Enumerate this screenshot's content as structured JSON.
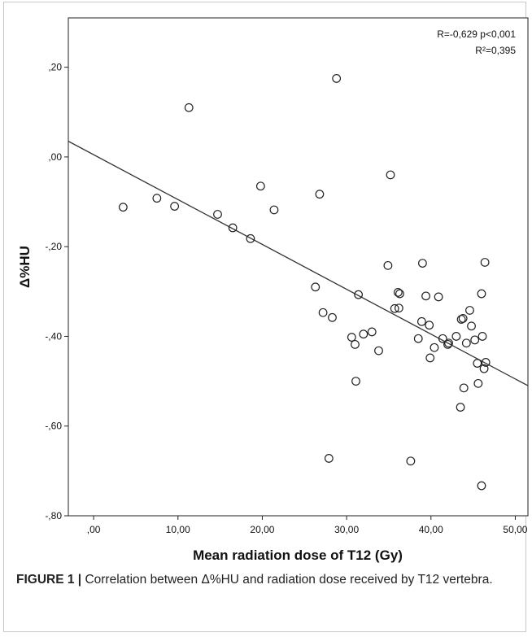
{
  "chart_data": {
    "type": "scatter",
    "xlabel": "Mean radiation dose of T12 (Gy)",
    "ylabel": "Δ%HU",
    "xlim": [
      -3,
      51.5
    ],
    "ylim": [
      -0.8,
      0.31
    ],
    "x_ticks": [
      0,
      10,
      20,
      30,
      40,
      50
    ],
    "x_tick_labels": [
      ",00",
      "10,00",
      "20,00",
      "30,00",
      "40,00",
      "50,00"
    ],
    "y_ticks": [
      0.2,
      0,
      -0.2,
      -0.4,
      -0.6,
      -0.8
    ],
    "y_tick_labels": [
      ",20",
      ",00",
      "-,20",
      "-,40",
      "-,60",
      "-,80"
    ],
    "grid": false,
    "annotations": [
      "R=-0,629  p<0,001",
      "R²=0,395"
    ],
    "fit_line": {
      "x": [
        -3,
        51.5
      ],
      "y": [
        0.035,
        -0.51
      ]
    },
    "points": [
      {
        "x": 3.5,
        "y": -0.112
      },
      {
        "x": 7.5,
        "y": -0.092
      },
      {
        "x": 9.6,
        "y": -0.11
      },
      {
        "x": 11.3,
        "y": 0.11
      },
      {
        "x": 14.7,
        "y": -0.128
      },
      {
        "x": 16.5,
        "y": -0.158
      },
      {
        "x": 18.6,
        "y": -0.182
      },
      {
        "x": 19.8,
        "y": -0.065
      },
      {
        "x": 21.4,
        "y": -0.118
      },
      {
        "x": 26.3,
        "y": -0.29
      },
      {
        "x": 26.8,
        "y": -0.083
      },
      {
        "x": 27.2,
        "y": -0.347
      },
      {
        "x": 27.9,
        "y": -0.672
      },
      {
        "x": 28.3,
        "y": -0.358
      },
      {
        "x": 28.8,
        "y": 0.175
      },
      {
        "x": 30.6,
        "y": -0.402
      },
      {
        "x": 31.0,
        "y": -0.418
      },
      {
        "x": 31.1,
        "y": -0.5
      },
      {
        "x": 31.4,
        "y": -0.307
      },
      {
        "x": 32.0,
        "y": -0.395
      },
      {
        "x": 33.0,
        "y": -0.39
      },
      {
        "x": 33.8,
        "y": -0.432
      },
      {
        "x": 34.9,
        "y": -0.242
      },
      {
        "x": 35.2,
        "y": -0.04
      },
      {
        "x": 35.7,
        "y": -0.338
      },
      {
        "x": 36.1,
        "y": -0.302
      },
      {
        "x": 36.2,
        "y": -0.337
      },
      {
        "x": 36.3,
        "y": -0.305
      },
      {
        "x": 37.6,
        "y": -0.678
      },
      {
        "x": 38.5,
        "y": -0.405
      },
      {
        "x": 38.9,
        "y": -0.367
      },
      {
        "x": 39.0,
        "y": -0.237
      },
      {
        "x": 39.4,
        "y": -0.31
      },
      {
        "x": 39.8,
        "y": -0.375
      },
      {
        "x": 39.9,
        "y": -0.448
      },
      {
        "x": 40.4,
        "y": -0.425
      },
      {
        "x": 40.9,
        "y": -0.312
      },
      {
        "x": 41.4,
        "y": -0.405
      },
      {
        "x": 42.0,
        "y": -0.418
      },
      {
        "x": 42.1,
        "y": -0.415
      },
      {
        "x": 43.0,
        "y": -0.4
      },
      {
        "x": 43.5,
        "y": -0.558
      },
      {
        "x": 43.6,
        "y": -0.362
      },
      {
        "x": 43.8,
        "y": -0.36
      },
      {
        "x": 43.9,
        "y": -0.515
      },
      {
        "x": 44.2,
        "y": -0.415
      },
      {
        "x": 44.6,
        "y": -0.342
      },
      {
        "x": 44.8,
        "y": -0.377
      },
      {
        "x": 45.2,
        "y": -0.408
      },
      {
        "x": 45.5,
        "y": -0.46
      },
      {
        "x": 45.6,
        "y": -0.505
      },
      {
        "x": 46.0,
        "y": -0.305
      },
      {
        "x": 46.0,
        "y": -0.733
      },
      {
        "x": 46.1,
        "y": -0.4
      },
      {
        "x": 46.3,
        "y": -0.472
      },
      {
        "x": 46.4,
        "y": -0.235
      },
      {
        "x": 46.5,
        "y": -0.458
      }
    ]
  },
  "caption": {
    "lead": "FIGURE 1 |",
    "text": " Correlation between Δ%HU and radiation dose received by T12 vertebra."
  }
}
